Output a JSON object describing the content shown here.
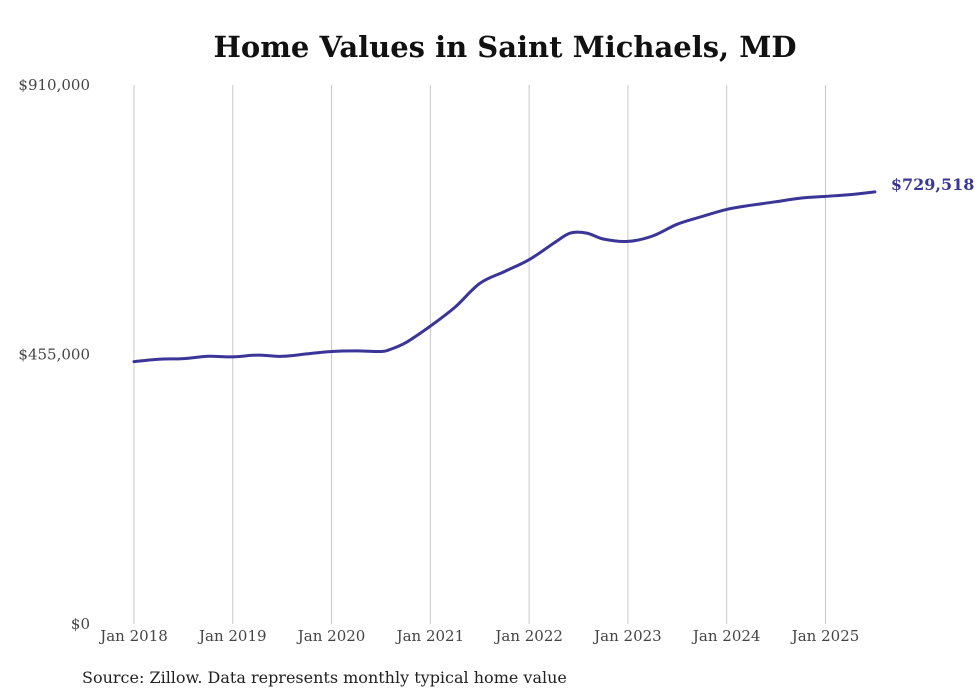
{
  "chart_data": {
    "type": "line",
    "title": "Home Values in Saint Michaels, MD",
    "source_note": "Source: Zillow. Data represents monthly typical home value",
    "ylim": [
      0,
      910000
    ],
    "y_ticks": [
      {
        "value": 0,
        "label": "$0"
      },
      {
        "value": 455000,
        "label": "$455,000"
      },
      {
        "value": 910000,
        "label": "$910,000"
      }
    ],
    "x_ticks": [
      {
        "value": "2018-01",
        "label": "Jan 2018"
      },
      {
        "value": "2019-01",
        "label": "Jan 2019"
      },
      {
        "value": "2020-01",
        "label": "Jan 2020"
      },
      {
        "value": "2021-01",
        "label": "Jan 2021"
      },
      {
        "value": "2022-01",
        "label": "Jan 2022"
      },
      {
        "value": "2023-01",
        "label": "Jan 2023"
      },
      {
        "value": "2024-01",
        "label": "Jan 2024"
      },
      {
        "value": "2025-01",
        "label": "Jan 2025"
      }
    ],
    "grid": "vertical",
    "line_color": "#3a3596",
    "end_label": "$729,518",
    "series": [
      {
        "x": [
          "2018-01",
          "2018-04",
          "2018-07",
          "2018-10",
          "2019-01",
          "2019-04",
          "2019-07",
          "2019-10",
          "2020-01",
          "2020-04",
          "2020-07",
          "2020-08",
          "2020-10",
          "2021-01",
          "2021-04",
          "2021-07",
          "2021-10",
          "2022-01",
          "2022-04",
          "2022-06",
          "2022-08",
          "2022-10",
          "2023-01",
          "2023-04",
          "2023-07",
          "2023-10",
          "2024-01",
          "2024-04",
          "2024-07",
          "2024-10",
          "2025-01",
          "2025-04",
          "2025-07"
        ],
        "y": [
          443000,
          447000,
          448000,
          452000,
          451000,
          454000,
          452000,
          456000,
          460000,
          461000,
          460000,
          463000,
          475000,
          503000,
          535000,
          575000,
          595000,
          615000,
          643000,
          660000,
          660000,
          650000,
          646000,
          655000,
          675000,
          688000,
          700000,
          707000,
          713000,
          719000,
          722000,
          725000,
          729518
        ]
      }
    ]
  }
}
